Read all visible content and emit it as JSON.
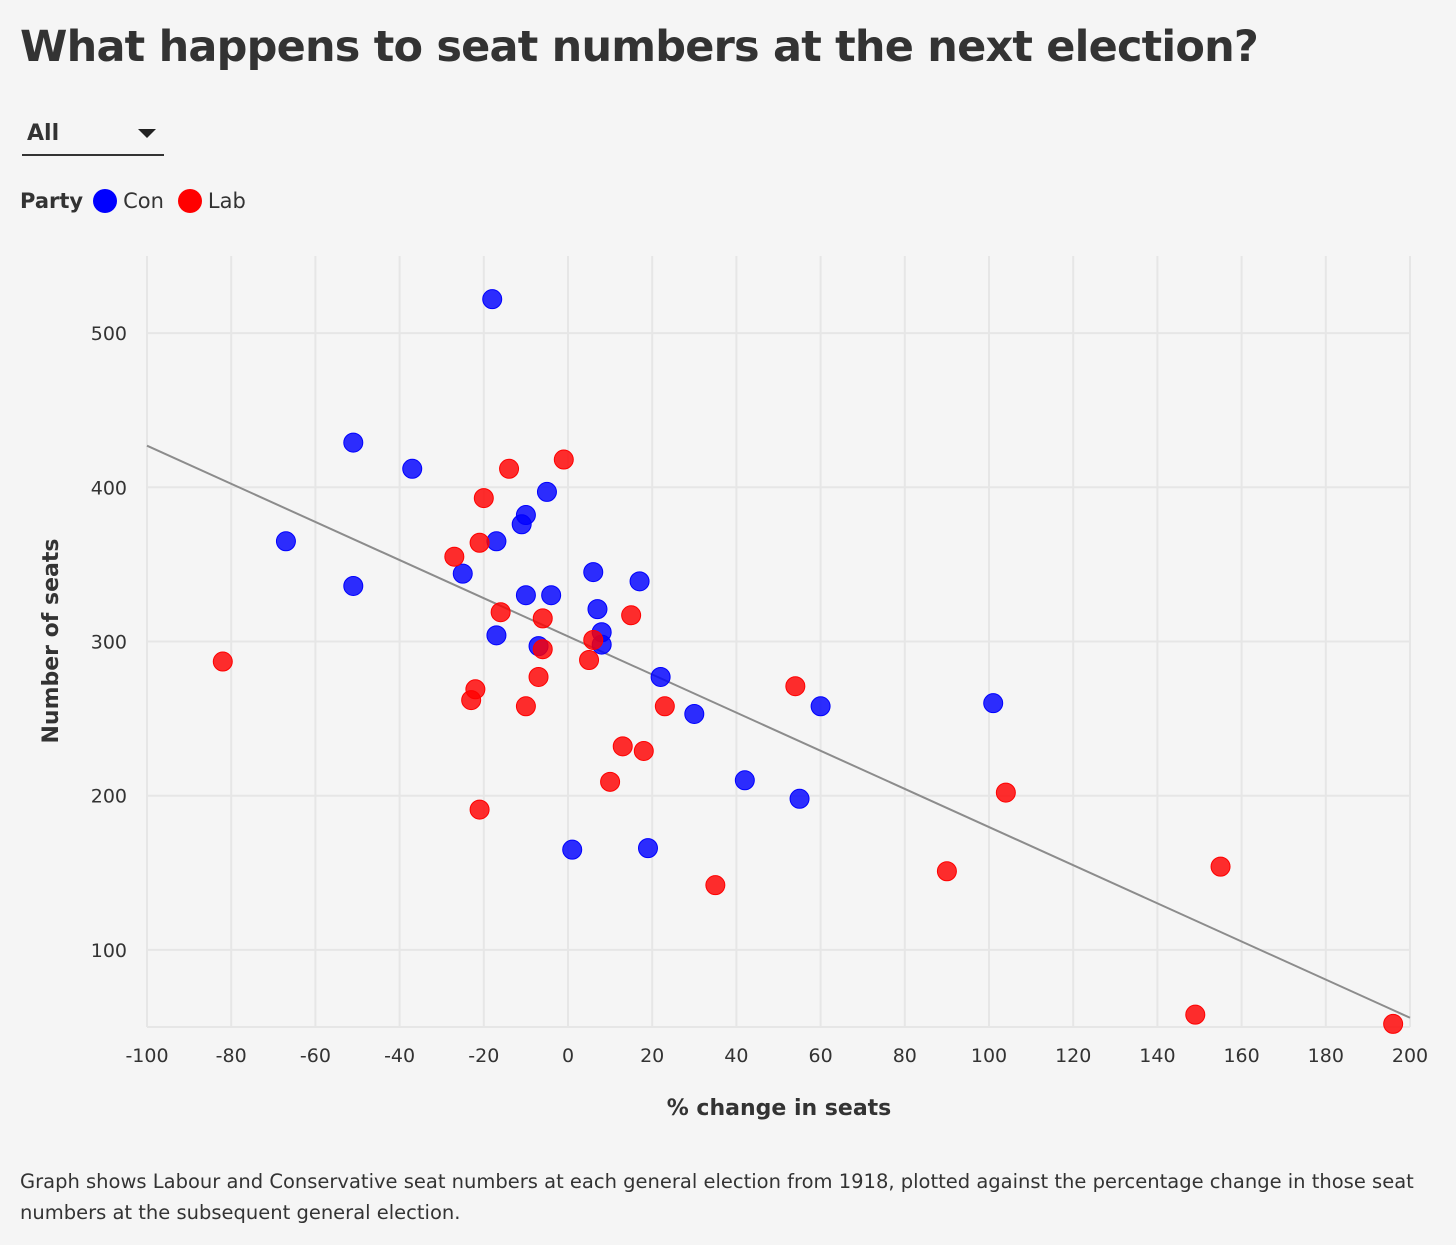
{
  "title": "What happens to seat numbers at the next election?",
  "filter": {
    "selected": "All"
  },
  "legend": {
    "title": "Party",
    "items": [
      {
        "label": "Con",
        "color": "#0000ff"
      },
      {
        "label": "Lab",
        "color": "#ff0000"
      }
    ]
  },
  "caption": "Graph shows Labour and Conservative seat numbers at each general election from 1918, plotted against the percentage change in those seat numbers at the subsequent general election.",
  "colors": {
    "con": "#0000ff",
    "lab": "#ff0000",
    "trendline": "#8c8c8c",
    "grid": "#e6e6e6"
  },
  "chart_data": {
    "type": "scatter",
    "title": "What happens to seat numbers at the next election?",
    "xlabel": "% change in seats",
    "ylabel": "Number of seats",
    "xlim": [
      -100,
      200
    ],
    "ylim": [
      50,
      550
    ],
    "xticks": [
      -100,
      -80,
      -60,
      -40,
      -20,
      0,
      20,
      40,
      60,
      80,
      100,
      120,
      140,
      160,
      180,
      200
    ],
    "yticks": [
      100,
      200,
      300,
      400,
      500
    ],
    "grid": true,
    "legend_position": "top-left",
    "series": [
      {
        "name": "Con",
        "color": "#0000ff",
        "points": [
          [
            -18,
            522
          ],
          [
            -51,
            429
          ],
          [
            -37,
            412
          ],
          [
            -67,
            365
          ],
          [
            -51,
            336
          ],
          [
            -5,
            397
          ],
          [
            -10,
            382
          ],
          [
            -11,
            376
          ],
          [
            -17,
            365
          ],
          [
            -25,
            344
          ],
          [
            -10,
            330
          ],
          [
            -4,
            330
          ],
          [
            6,
            345
          ],
          [
            17,
            339
          ],
          [
            7,
            321
          ],
          [
            -17,
            304
          ],
          [
            8,
            306
          ],
          [
            -7,
            297
          ],
          [
            8,
            298
          ],
          [
            22,
            277
          ],
          [
            30,
            253
          ],
          [
            60,
            258
          ],
          [
            101,
            260
          ],
          [
            42,
            210
          ],
          [
            55,
            198
          ],
          [
            1,
            165
          ],
          [
            19,
            166
          ]
        ]
      },
      {
        "name": "Lab",
        "color": "#ff0000",
        "points": [
          [
            -1,
            418
          ],
          [
            -14,
            412
          ],
          [
            -20,
            393
          ],
          [
            -21,
            364
          ],
          [
            -27,
            355
          ],
          [
            -16,
            319
          ],
          [
            -6,
            315
          ],
          [
            15,
            317
          ],
          [
            6,
            301
          ],
          [
            -6,
            295
          ],
          [
            5,
            288
          ],
          [
            -82,
            287
          ],
          [
            -7,
            277
          ],
          [
            -22,
            269
          ],
          [
            -23,
            262
          ],
          [
            -10,
            258
          ],
          [
            23,
            258
          ],
          [
            54,
            271
          ],
          [
            13,
            232
          ],
          [
            18,
            229
          ],
          [
            10,
            209
          ],
          [
            -21,
            191
          ],
          [
            104,
            202
          ],
          [
            35,
            142
          ],
          [
            90,
            151
          ],
          [
            155,
            154
          ],
          [
            149,
            58
          ],
          [
            196,
            52
          ]
        ]
      }
    ],
    "trendline": {
      "x": [
        -100,
        200
      ],
      "y": [
        427,
        56
      ]
    }
  }
}
